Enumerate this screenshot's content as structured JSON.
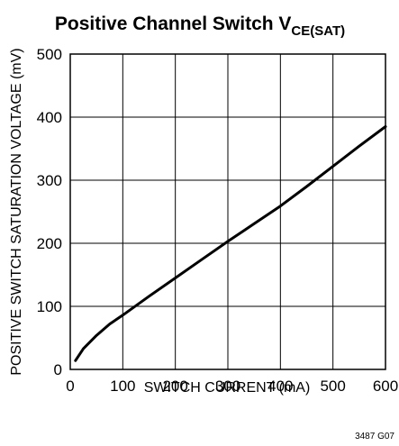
{
  "chart_data": {
    "type": "line",
    "title": "Positive Channel Switch V",
    "title_subscript": "CE(SAT)",
    "xlabel": "SWITCH CURRENT (mA)",
    "ylabel": "POSITIVE SWITCH SATURATION VOLTAGE (mV)",
    "xlim": [
      0,
      600
    ],
    "ylim": [
      0,
      500
    ],
    "x_ticks": [
      0,
      100,
      200,
      300,
      400,
      500,
      600
    ],
    "y_ticks": [
      0,
      100,
      200,
      300,
      400,
      500
    ],
    "grid": true,
    "series": [
      {
        "x": [
          10,
          25,
          50,
          75,
          100,
          150,
          200,
          250,
          300,
          350,
          400,
          450,
          500,
          550,
          600
        ],
        "y": [
          14,
          33,
          54,
          72,
          86,
          116,
          145,
          174,
          203,
          231,
          259,
          290,
          322,
          354,
          385
        ]
      }
    ],
    "footnote": "3487 G07"
  }
}
